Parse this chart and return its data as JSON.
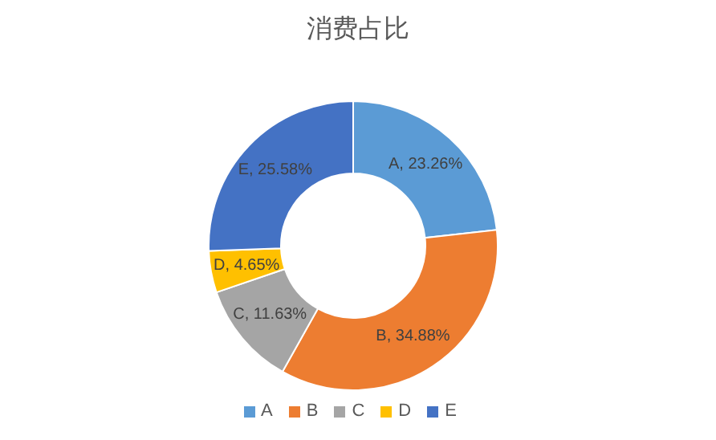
{
  "chart_data": {
    "type": "donut",
    "title": "消费占比",
    "categories": [
      "A",
      "B",
      "C",
      "D",
      "E"
    ],
    "values": [
      23.26,
      34.88,
      11.63,
      4.65,
      25.58
    ],
    "colors": [
      "#5b9bd5",
      "#ed7d31",
      "#a5a5a5",
      "#ffc000",
      "#4472c4"
    ],
    "value_labels": [
      "A, 23.26%",
      "B, 34.88%",
      "C, 11.63%",
      "D, 4.65%",
      "E, 25.58%"
    ],
    "legend": "bottom"
  }
}
